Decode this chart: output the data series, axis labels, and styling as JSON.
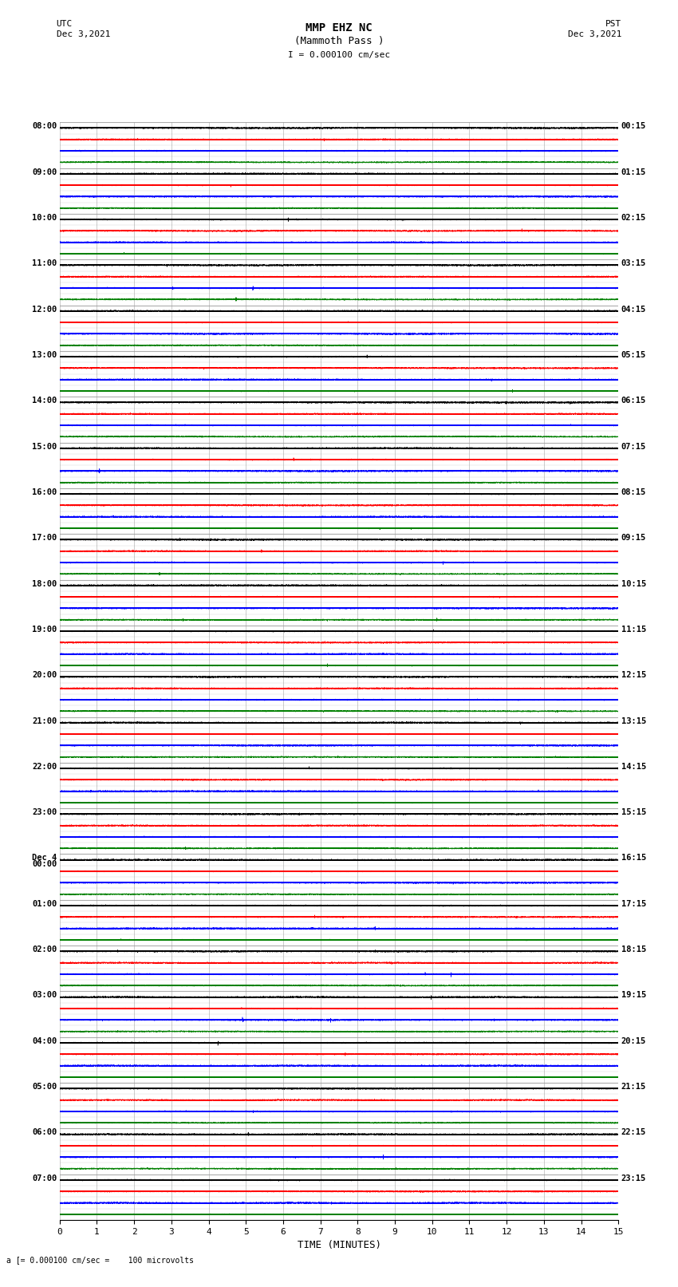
{
  "title_line1": "MMP EHZ NC",
  "title_line2": "(Mammoth Pass )",
  "scale_text": "I = 0.000100 cm/sec",
  "footer_text": "a [= 0.000100 cm/sec =    100 microvolts",
  "left_label_line1": "UTC",
  "left_label_line2": "Dec 3,2021",
  "right_label_line1": "PST",
  "right_label_line2": "Dec 3,2021",
  "xlabel": "TIME (MINUTES)",
  "left_times": [
    "08:00",
    "09:00",
    "10:00",
    "11:00",
    "12:00",
    "13:00",
    "14:00",
    "15:00",
    "16:00",
    "17:00",
    "18:00",
    "19:00",
    "20:00",
    "21:00",
    "22:00",
    "23:00",
    "Dec 4",
    "01:00",
    "02:00",
    "03:00",
    "04:00",
    "05:00",
    "06:00",
    "07:00"
  ],
  "left_times_sub": [
    "",
    "",
    "",
    "",
    "",
    "",
    "",
    "",
    "",
    "",
    "",
    "",
    "",
    "",
    "",
    "",
    "00:00",
    "",
    "",
    "",
    "",
    "",
    "",
    ""
  ],
  "right_times": [
    "00:15",
    "01:15",
    "02:15",
    "03:15",
    "04:15",
    "05:15",
    "06:15",
    "07:15",
    "08:15",
    "09:15",
    "10:15",
    "11:15",
    "12:15",
    "13:15",
    "14:15",
    "15:15",
    "16:15",
    "17:15",
    "18:15",
    "19:15",
    "20:15",
    "21:15",
    "22:15",
    "23:15"
  ],
  "n_rows": 24,
  "traces_per_row": 4,
  "trace_colors": [
    "black",
    "red",
    "blue",
    "green"
  ],
  "bg_color": "white",
  "plot_bg": "white",
  "grid_color": "#999999",
  "time_minutes": 15,
  "sample_rate": 50,
  "noise_amplitude": 0.025,
  "fig_width": 8.5,
  "fig_height": 16.13
}
